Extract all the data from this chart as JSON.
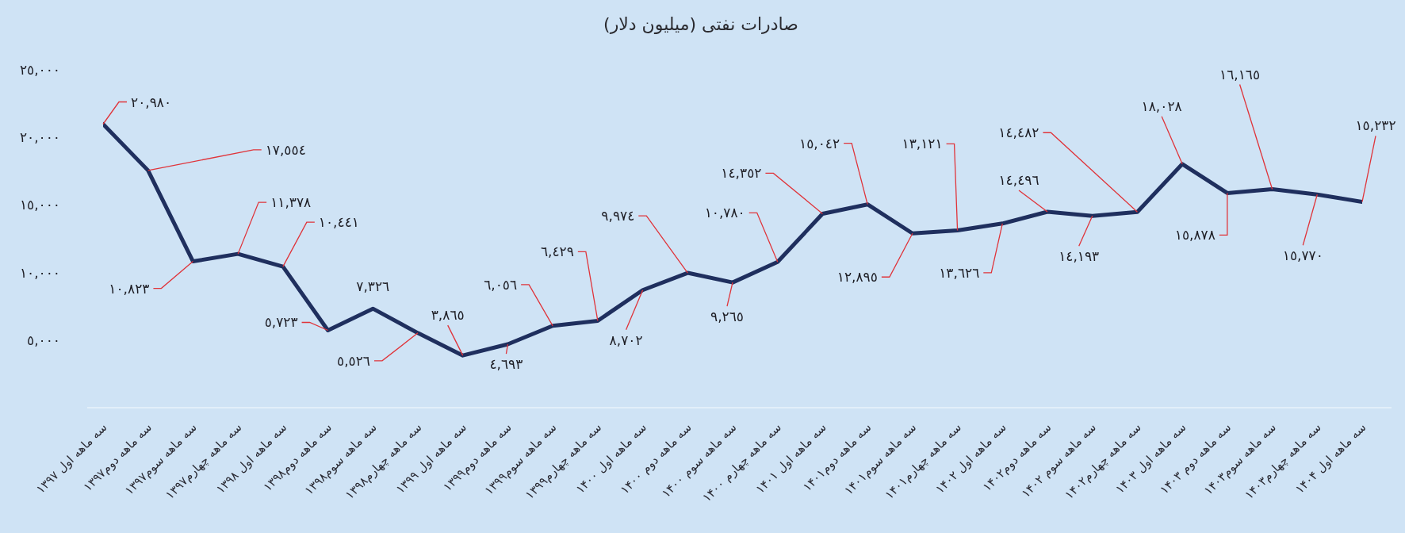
{
  "chart_data": {
    "type": "line",
    "title": "صادرات نفتی (میلیون دلار)",
    "categories": [
      "سه ماهه اول ۱۳۹۷",
      "سه ماهه دوم۱۳۹۷",
      "سه ماهه سوم۱۳۹۷",
      "سه ماهه چهارم۱۳۹۷",
      "سه ماهه اول ۱۳۹۸",
      "سه ماهه دوم۱۳۹۸",
      "سه ماهه سوم۱۳۹۸",
      "سه ماهه چهارم۱۳۹۸",
      "سه ماهه اول ۱۳۹۹",
      "سه ماهه دوم۱۳۹۹",
      "سه ماهه سوم۱۳۹۹",
      "سه ماهه چهارم۱۳۹۹",
      "سه ماهه اول ۱۴۰۰",
      "سه ماهه دوم ۱۴۰۰",
      "سه ماهه سوم ۱۴۰۰",
      "سه ماهه چهارم ۱۴۰۰",
      "سه ماهه اول ۱۴۰۱",
      "سه ماهه دوم۱۴۰۱",
      "سه ماهه سوم۱۴۰۱",
      "سه ماهه چهارم۱۴۰۱",
      "سه ماهه اول ۱۴۰۲",
      "سه ماهه دوم۱۴۰۲",
      "سه ماهه سوم ۱۴۰۲",
      "سه ماهه چهارم۱۴۰۲",
      "سه ماهه اول ۱۴۰۳",
      "سه ماهه دوم ۱۴۰۳",
      "سه ماهه سوم۱۴۰۳",
      "سه ماهه چهارم۱۴۰۳",
      "سه ماهه اول ۱۴۰۴"
    ],
    "values": [
      20980,
      17554,
      10823,
      11378,
      10441,
      5723,
      7326,
      5526,
      3865,
      4693,
      6056,
      6429,
      8702,
      9974,
      9265,
      10780,
      14352,
      15042,
      12895,
      13121,
      13626,
      14496,
      14193,
      14482,
      18028,
      15878,
      16165,
      15770,
      15232
    ],
    "value_labels": [
      "٢٠,٩٨٠",
      "١٧,٥٥٤",
      "١٠,٨٢٣",
      "١١,٣٧٨",
      "١٠,٤٤١",
      "٥,٧٢٣",
      "٧,٣٢٦",
      "٥,٥٢٦",
      "٣,٨٦٥",
      "٤,٦٩٣",
      "٦,٠٥٦",
      "٦,٤٢٩",
      "٨,٧٠٢",
      "٩,٩٧٤",
      "٩,٢٦٥",
      "١٠,٧٨٠",
      "١٤,٣٥٢",
      "١٥,٠٤٢",
      "١٢,٨٩٥",
      "١٣,١٢١",
      "١٣,٦٢٦",
      "١٤,٤٩٦",
      "١٤,١٩٣",
      "١٤,٤٨٢",
      "١٨,٠٢٨",
      "١٥,٨٧٨",
      "١٦,١٦٥",
      "١٥,٧٧٠",
      "١٥,٢٣٢"
    ],
    "color": "#1f2f5e",
    "ylim": [
      0,
      25000
    ],
    "yticks": [
      {
        "value": 5000,
        "label": "٥,٠٠٠"
      },
      {
        "value": 10000,
        "label": "١٠,٠٠٠"
      },
      {
        "value": 15000,
        "label": "١٥,٠٠٠"
      },
      {
        "value": 20000,
        "label": "٢٠,٠٠٠"
      },
      {
        "value": 25000,
        "label": "٢٥,٠٠٠"
      }
    ],
    "marker": "none",
    "line_style": "solid"
  }
}
